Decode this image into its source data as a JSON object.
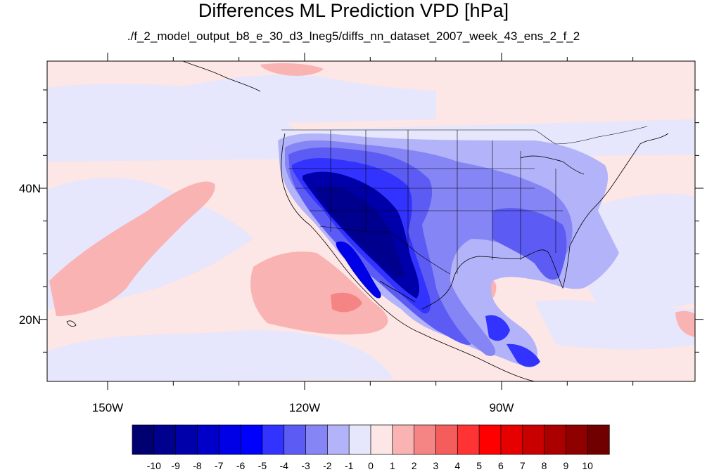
{
  "title": "Differences ML Prediction VPD [hPa]",
  "subtitle": "./f_2_model_output_b8_e_30_d3_lneg5/diffs_nn_dataset_2007_week_43_ens_2_f_2",
  "axes": {
    "lat_labels": [
      "40N",
      "20N"
    ],
    "lon_labels": [
      "150W",
      "120W",
      "90W"
    ]
  },
  "colorbar": {
    "labels": [
      "-10",
      "-9",
      "-8",
      "-7",
      "-6",
      "-5",
      "-4",
      "-3",
      "-2",
      "-1",
      "0",
      "1",
      "2",
      "3",
      "4",
      "5",
      "6",
      "7",
      "8",
      "9",
      "10"
    ],
    "colors": [
      "#000070",
      "#00008f",
      "#0000aa",
      "#0000c8",
      "#0000e6",
      "#0000ff",
      "#3333ff",
      "#5c5cf5",
      "#8585f5",
      "#b3b3fa",
      "#e6e6fc",
      "#fce6e6",
      "#fab3b3",
      "#f58585",
      "#f55c5c",
      "#ff3333",
      "#ff0000",
      "#e60000",
      "#c80000",
      "#aa0000",
      "#8f0000",
      "#700000"
    ]
  },
  "map_colors": {
    "ocean_pos": "#fce6e6",
    "ocean_neg": "#e6e6fc",
    "warm1": "#fab3b3",
    "warm2": "#f58585",
    "cool1": "#b3b3fa",
    "cool2": "#8585f5",
    "cool3": "#5c5cf5",
    "cool4": "#3333ff",
    "cool5": "#0000e6",
    "cool6": "#0000aa",
    "cool7": "#00008f"
  }
}
